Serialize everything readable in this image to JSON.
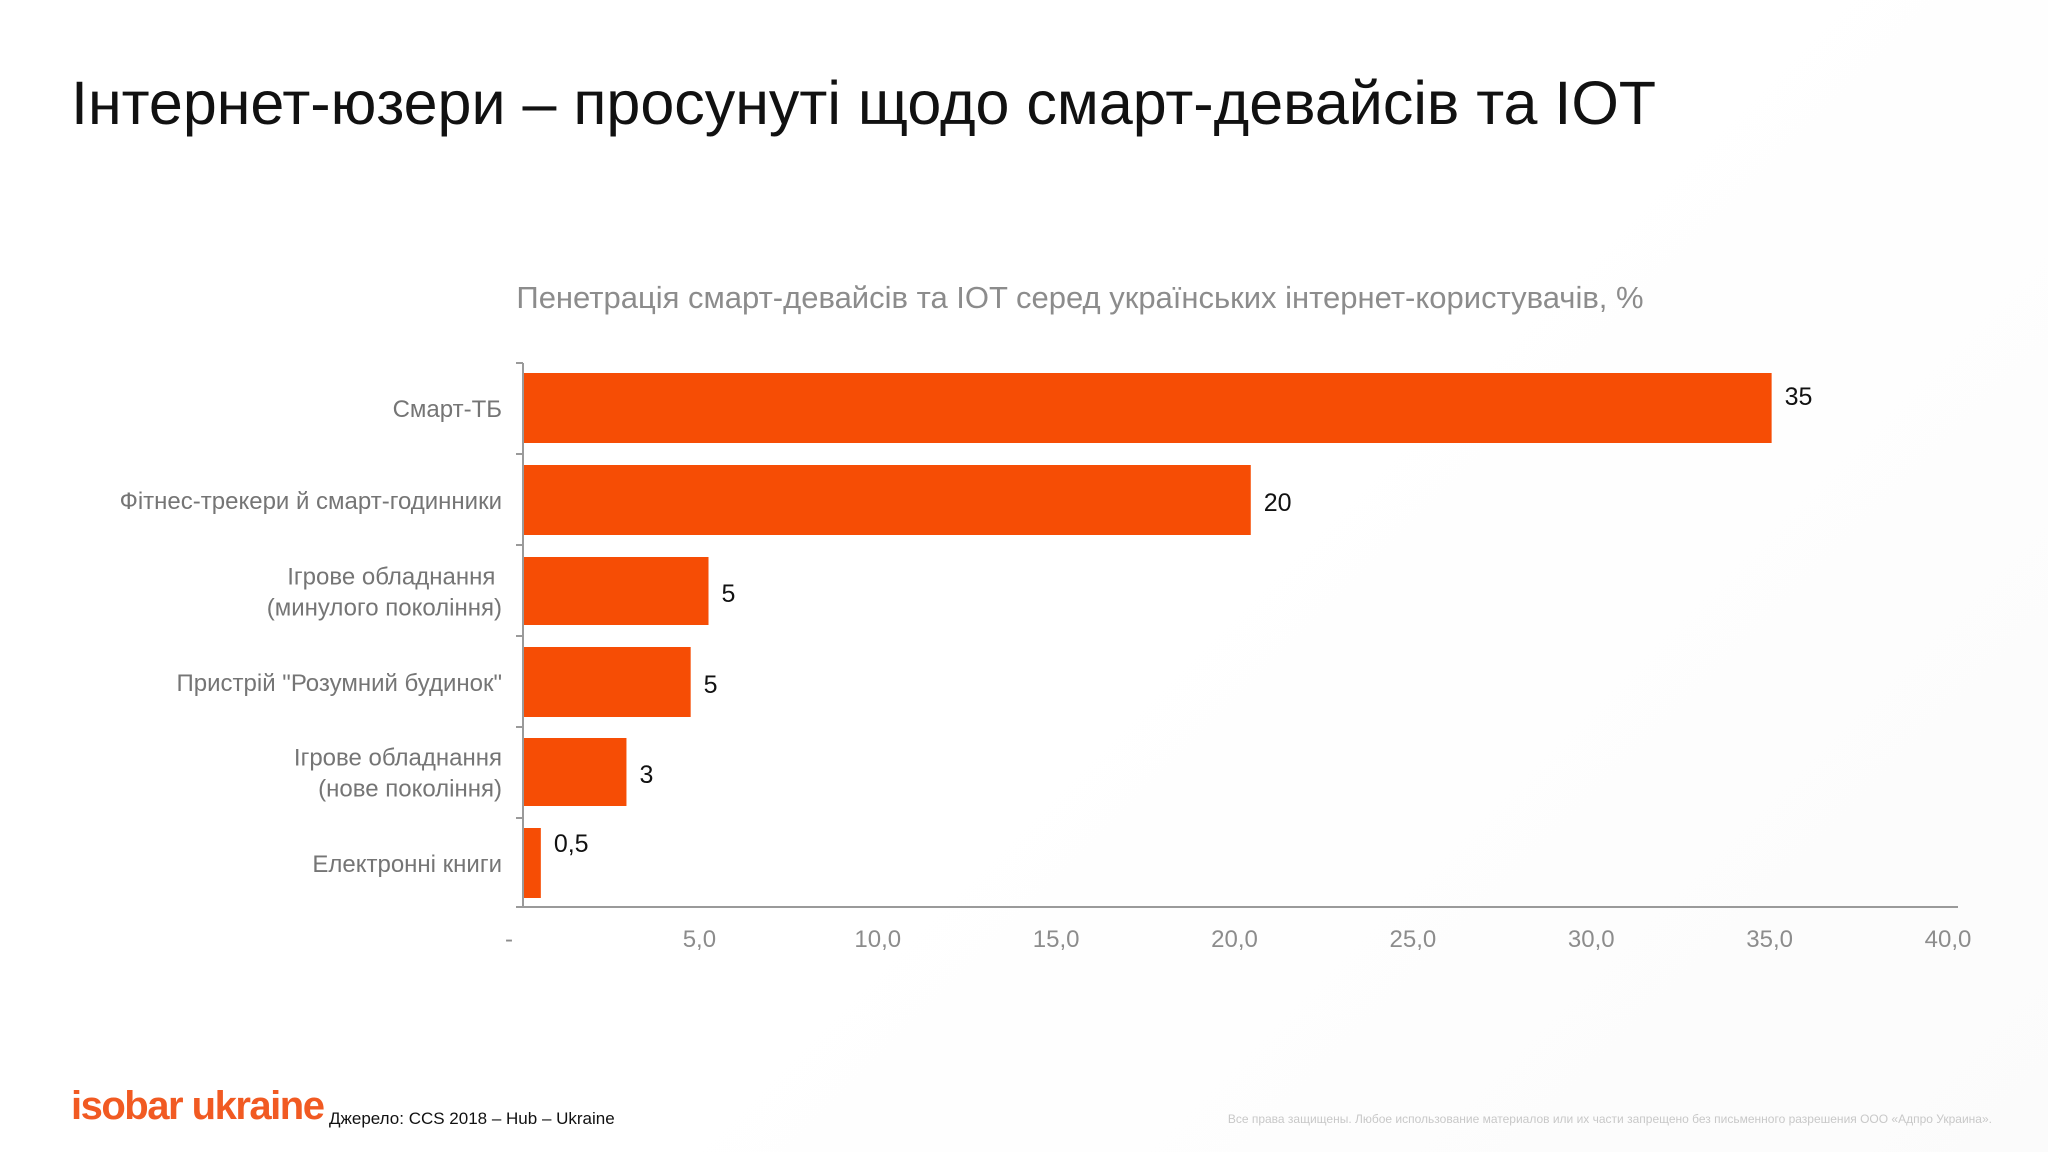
{
  "page": {
    "title": "Інтернет-юзери – просунуті щодо смарт-девайсів та IOT"
  },
  "chart_data": {
    "type": "bar",
    "orientation": "horizontal",
    "title": "Пенетрація смарт-девайсів та IOT серед українських інтернет-користувачів, %",
    "categories": [
      [
        "Смарт-ТБ"
      ],
      [
        "Фітнес-трекери й смарт-годинники"
      ],
      [
        "Ігрове обладнання ",
        "(минулого покоління)"
      ],
      [
        "Пристрій \"Розумний будинок\""
      ],
      [
        "Ігрове обладнання",
        "(нове покоління)"
      ],
      [
        "Електронні книги"
      ]
    ],
    "values": [
      35,
      20.4,
      5.2,
      4.7,
      2.9,
      0.5
    ],
    "data_labels": [
      "35",
      "20",
      "5",
      "5",
      "3",
      "0,5"
    ],
    "xlim": [
      0,
      40
    ],
    "x_ticks": [
      0,
      5,
      10,
      15,
      20,
      25,
      30,
      35,
      40
    ],
    "x_tick_labels": [
      "-",
      "5,0",
      "10,0",
      "15,0",
      "20,0",
      "25,0",
      "30,0",
      "35,0",
      "40,0"
    ],
    "bar_color": "#f64d05",
    "grid": false,
    "legend": "none"
  },
  "footer": {
    "logo": "isobar ukraine",
    "source": "Джерело: CCS 2018 – Hub – Ukraine",
    "copyright": "Все права защищены. Любое использование материалов или их части запрещено без письменного разрешения ООО «Адпро Украина»."
  },
  "colors": {
    "accent": "#f64d05",
    "logo": "#f15a22",
    "axis": "#888888",
    "label": "#757575"
  }
}
